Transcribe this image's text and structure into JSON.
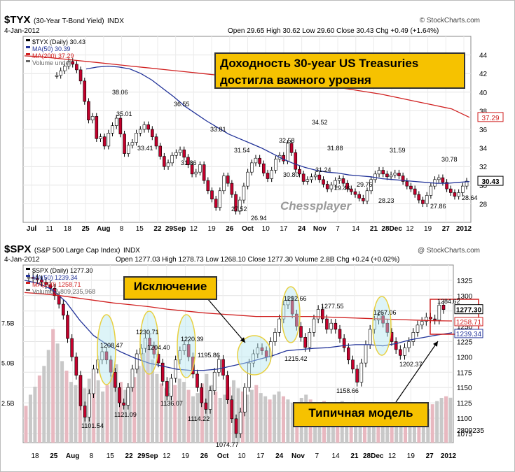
{
  "panels": {
    "tyx": {
      "symbol": "$TYX",
      "name": "(30-Year T-Bond Yield)",
      "exchange": "INDX",
      "source": "© StockCharts.com",
      "date": "4-Jan-2012",
      "ohlc": "Open 29.65  High 30.62  Low 29.60  Close 30.43  Chg +0.49 (+1.64%)",
      "legend": [
        "$TYX (Daily) 30.43",
        "MA(50) 30.39",
        "MA(200) 37.29",
        "Volume undef"
      ],
      "watermark": "Chessplayer",
      "callout_line1": "Доходность 30-year US Treasuries",
      "callout_line2": "достигла важного уровня",
      "last_label": "30.43",
      "ma200_label": "37.29"
    },
    "spx": {
      "symbol": "$SPX",
      "name": "(S&P 500 Large Cap Index)",
      "exchange": "INDX",
      "source": "@ StockCharts.com",
      "date": "4-Jan-2012",
      "ohlc": "Open 1277.03  High 1278.73  Low 1268.10  Close 1277.30  Volume 2.8B  Chg +0.24 (+0.02%)",
      "legend": [
        "$SPX (Daily) 1277.30",
        "MA(50) 1239.34",
        "MA(200) 1258.71",
        "Volume 2,809,235,968"
      ],
      "callout_exception": "Исключение",
      "callout_model": "Типичная модель",
      "last_label": "1277.30",
      "ma200_label": "1258.71",
      "ma50_label": "1239.34",
      "hi_label": "1284.62",
      "vol_label": "2809235",
      "vol_axis": [
        "7.5B",
        "5.0B",
        "2.5B"
      ]
    }
  },
  "chart_data": [
    {
      "type": "line",
      "title": "$TYX (30-Year T-Bond Yield)",
      "ylim": [
        26,
        46
      ],
      "y_ticks": [
        28,
        30,
        32,
        34,
        36,
        38,
        40,
        42,
        44
      ],
      "x_labels": [
        "Jul",
        "11",
        "18",
        "25",
        "Aug",
        "8",
        "15",
        "22",
        "29Sep",
        "12",
        "19",
        "26",
        "Oct",
        "10",
        "17",
        "24",
        "Nov",
        "7",
        "14",
        "21",
        "28Dec",
        "12",
        "19",
        "27",
        "2012"
      ],
      "price": [
        41.8,
        42.3,
        42.8,
        43.3,
        43.0,
        42.4,
        41.2,
        39.0,
        37.0,
        37.4,
        35.0,
        35.2,
        34.2,
        35.6,
        36.4,
        37.2,
        35.5,
        33.4,
        34.3,
        34.6,
        35.6,
        36.0,
        36.5,
        36.0,
        35.2,
        34.2,
        33.1,
        32.0,
        32.4,
        33.2,
        33.5,
        33.8,
        33.0,
        32.2,
        31.2,
        31.4,
        32.2,
        30.5,
        29.4,
        28.5,
        27.6,
        29.4,
        31.0,
        30.2,
        29.0,
        27.2,
        28.4,
        29.9,
        31.4,
        32.4,
        32.9,
        32.3,
        31.3,
        30.7,
        31.6,
        32.8,
        33.2,
        32.6,
        34.5,
        33.5,
        31.7,
        31.2,
        30.4,
        30.6,
        30.9,
        31.1,
        30.6,
        30.1,
        29.6,
        30.0,
        30.5,
        30.7,
        30.2,
        29.6,
        29.3,
        29.0,
        28.6,
        28.3,
        29.4,
        30.6,
        31.2,
        31.6,
        31.2,
        30.9,
        31.1,
        31.3,
        31.0,
        30.4,
        29.9,
        29.6,
        29.0,
        28.4,
        28.0,
        28.9,
        29.9,
        30.6,
        30.8,
        30.3,
        29.6,
        29.2,
        28.8,
        29.2,
        29.9,
        30.43
      ],
      "ma50": [
        42.5,
        42.7,
        42.8,
        42.7,
        42.5,
        42.0,
        41.3,
        40.4,
        39.5,
        38.5,
        37.7,
        36.9,
        36.2,
        35.5,
        35.0,
        34.5,
        34.0,
        33.4,
        32.8,
        32.3,
        31.9,
        31.6,
        31.4,
        31.3,
        31.1,
        31.0,
        30.9,
        30.7,
        30.6,
        30.5,
        30.4,
        30.3,
        30.2,
        30.2,
        30.3,
        30.39
      ],
      "ma200": [
        43.9,
        43.8,
        43.6,
        43.4,
        43.2,
        43.0,
        42.8,
        42.6,
        42.4,
        42.2,
        42.0,
        41.8,
        41.6,
        41.4,
        41.2,
        41.0,
        40.8,
        40.6,
        40.4,
        40.1,
        39.8,
        39.4,
        39.0,
        38.6,
        38.2,
        37.29
      ],
      "annotations": [
        "38.06",
        "35.01",
        "33.41",
        "36.55",
        "31.86",
        "33.81",
        "31.54",
        "27.52",
        "26.94",
        "32.58",
        "30.80",
        "34.52",
        "31.24",
        "31.88",
        "29.46",
        "29.75",
        "28.23",
        "31.59",
        "30.78",
        "27.86",
        "28.64"
      ],
      "legend": [
        "$TYX (Daily) 30.43",
        "MA(50) 30.39",
        "MA(200) 37.29",
        "Volume undef"
      ]
    },
    {
      "type": "line",
      "title": "$SPX (S&P 500 Large Cap Index)",
      "ylim": [
        1060,
        1350
      ],
      "y_ticks": [
        1075,
        1100,
        1125,
        1150,
        1175,
        1200,
        1225,
        1250,
        1275,
        1300,
        1325
      ],
      "x_labels": [
        "18",
        "25",
        "Aug",
        "8",
        "15",
        "22",
        "29Sep",
        "12",
        "19",
        "26",
        "Oct",
        "10",
        "17",
        "24",
        "Nov",
        "7",
        "14",
        "21",
        "28Dec",
        "12",
        "19",
        "27",
        "2012"
      ],
      "price": [
        1330,
        1328,
        1326,
        1322,
        1318,
        1312,
        1300,
        1286,
        1268,
        1230,
        1200,
        1170,
        1120,
        1101.54,
        1140,
        1180,
        1195,
        1208.47,
        1195,
        1175,
        1150,
        1125,
        1121.09,
        1150,
        1180,
        1205,
        1214,
        1230.71,
        1218,
        1204.4,
        1190,
        1160,
        1136.07,
        1165,
        1195,
        1210,
        1220.39,
        1200,
        1172,
        1150,
        1125,
        1114.22,
        1145,
        1175,
        1195.86,
        1170,
        1130,
        1099,
        1074.77,
        1110,
        1150,
        1190,
        1205,
        1215,
        1210,
        1200,
        1225,
        1240,
        1262,
        1285,
        1292.66,
        1270,
        1250,
        1232,
        1215.42,
        1240,
        1262,
        1277.55,
        1262,
        1245,
        1255,
        1245,
        1230,
        1215,
        1195,
        1180,
        1158.66,
        1190,
        1220,
        1245,
        1260,
        1267.06,
        1255,
        1240,
        1225,
        1212,
        1202.37,
        1215,
        1225,
        1240,
        1252,
        1258,
        1265,
        1262,
        1260,
        1284.62,
        1277.3
      ],
      "ma50": [
        1325,
        1320,
        1310,
        1290,
        1260,
        1235,
        1220,
        1208,
        1198,
        1190,
        1185,
        1180,
        1178,
        1178,
        1180,
        1185,
        1190,
        1196,
        1202,
        1210,
        1212,
        1214,
        1215,
        1218,
        1220,
        1220,
        1218,
        1222,
        1228,
        1232,
        1236,
        1239.34
      ],
      "ma200": [
        1305,
        1303,
        1300,
        1296,
        1292,
        1288,
        1285,
        1282,
        1278,
        1275,
        1272,
        1270,
        1268,
        1266,
        1266,
        1266,
        1266,
        1265,
        1264,
        1263,
        1262,
        1261,
        1260,
        1259,
        1258.71
      ],
      "volume_ylim": [
        0,
        10000000000
      ],
      "volume": [
        2.3,
        3.0,
        3.5,
        4.2,
        4.8,
        5.8,
        7.1,
        6.2,
        5.1,
        4.5,
        3.8,
        3.6,
        4.1,
        3.4,
        4.0,
        4.4,
        3.9,
        3.2,
        3.6,
        4.2,
        4.9,
        3.8,
        3.3,
        3.5,
        4.1,
        4.8,
        5.6,
        6.1,
        5.2,
        4.3,
        3.7,
        3.4,
        3.1,
        3.6,
        4.0,
        3.8,
        3.3,
        2.9,
        3.1,
        3.7,
        4.3,
        3.6,
        3.2,
        2.8,
        3.0,
        3.5,
        3.9,
        3.4,
        3.2,
        3.0,
        3.3,
        3.6,
        3.1,
        2.9,
        2.7,
        3.0,
        3.2,
        2.9,
        2.7,
        2.5,
        2.4,
        2.8,
        3.0,
        2.7,
        2.3,
        2.1,
        2.6,
        2.2,
        1.9,
        2.3,
        2.6,
        2.4,
        2.0,
        2.2,
        2.5,
        2.3,
        2.1,
        1.8,
        2.0,
        2.4,
        2.1,
        1.9,
        2.2,
        2.0,
        1.8,
        1.5,
        1.7,
        2.0,
        2.3,
        2.1,
        2.4,
        2.6,
        2.8,
        2.9,
        2.81
      ],
      "annotations": [
        "1208.47",
        "1101.54",
        "1121.09",
        "1230.71",
        "1204.40",
        "1136.07",
        "1220.39",
        "1195.86",
        "1114.22",
        "1074.77",
        "1292.66",
        "1215.42",
        "1277.55",
        "1158.66",
        "1267.06",
        "1202.37",
        "1284.62"
      ],
      "legend": [
        "$SPX (Daily) 1277.30",
        "MA(50) 1239.34",
        "MA(200) 1258.71",
        "Volume 2,809,235,968"
      ]
    }
  ]
}
